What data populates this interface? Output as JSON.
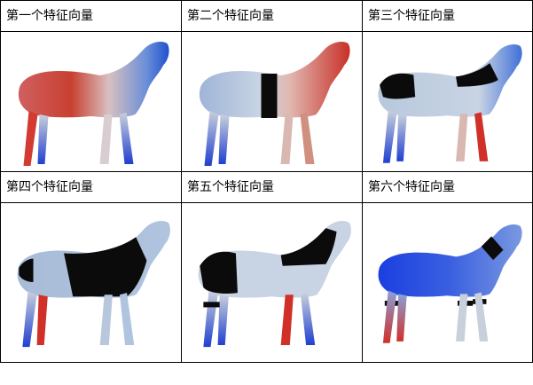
{
  "panels": [
    {
      "label": "第一个特征向量",
      "stripes": []
    },
    {
      "label": "第二个特征向量",
      "stripes": [
        "mid"
      ]
    },
    {
      "label": "第三个特征向量",
      "stripes": [
        "front",
        "neck-top"
      ]
    },
    {
      "label": "第四个特征向量",
      "stripes": [
        "neck",
        "rear"
      ]
    },
    {
      "label": "第五个特征向量",
      "stripes": [
        "neck-full",
        "rear",
        "legs"
      ]
    },
    {
      "label": "第六个特征向量",
      "stripes": [
        "neck-top",
        "legs"
      ]
    }
  ],
  "colors": {
    "blue": "#1a3fe0",
    "red": "#d4302a",
    "pale": "#c7d7e8",
    "black": "#0b0b0b"
  }
}
